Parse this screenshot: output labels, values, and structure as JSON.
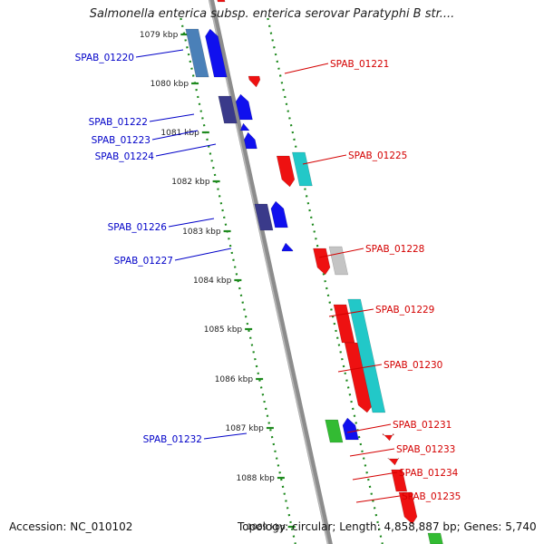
{
  "title": "Salmonella enterica subsp. enterica serovar Paratyphi B str....",
  "footer": {
    "accession": "Accession: NC_010102",
    "topology": "Topology: circular; Length: 4,858,887 bp; Genes: 5,740"
  },
  "colors": {
    "backbone": "#8c8c8c",
    "tick_dots": "#1f8a1f",
    "left_label": "#0000c8",
    "right_label": "#d40000",
    "blue": "#1010ee",
    "dark_blue": "#3a3a8a",
    "steel_blue": "#4a80b8",
    "red": "#ee1111",
    "cyan": "#22c8c8",
    "gray": "#c4c4c4",
    "green": "#33bb33"
  },
  "scale_labels": [
    {
      "id": "kbp-1079",
      "text": "1079 kbp"
    },
    {
      "id": "kbp-1080",
      "text": "1080 kbp"
    },
    {
      "id": "kbp-1081",
      "text": "1081 kbp"
    },
    {
      "id": "kbp-1082",
      "text": "1082 kbp"
    },
    {
      "id": "kbp-1083",
      "text": "1083 kbp"
    },
    {
      "id": "kbp-1084",
      "text": "1084 kbp"
    },
    {
      "id": "kbp-1085",
      "text": "1085 kbp"
    },
    {
      "id": "kbp-1086",
      "text": "1086 kbp"
    },
    {
      "id": "kbp-1087",
      "text": "1087 kbp"
    },
    {
      "id": "kbp-1088",
      "text": "1088 kbp"
    },
    {
      "id": "kbp-1089",
      "text": "1089 kbp"
    }
  ],
  "left_genes": [
    {
      "id": "spab-01220",
      "label": "SPAB_01220"
    },
    {
      "id": "spab-01222",
      "label": "SPAB_01222"
    },
    {
      "id": "spab-01223",
      "label": "SPAB_01223"
    },
    {
      "id": "spab-01224",
      "label": "SPAB_01224"
    },
    {
      "id": "spab-01226",
      "label": "SPAB_01226"
    },
    {
      "id": "spab-01227",
      "label": "SPAB_01227"
    },
    {
      "id": "spab-01232",
      "label": "SPAB_01232"
    }
  ],
  "right_genes": [
    {
      "id": "spab-01221",
      "label": "SPAB_01221"
    },
    {
      "id": "spab-01225",
      "label": "SPAB_01225"
    },
    {
      "id": "spab-01228",
      "label": "SPAB_01228"
    },
    {
      "id": "spab-01229",
      "label": "SPAB_01229"
    },
    {
      "id": "spab-01230",
      "label": "SPAB_01230"
    },
    {
      "id": "spab-01231",
      "label": "SPAB_01231"
    },
    {
      "id": "spab-01233",
      "label": "SPAB_01233"
    },
    {
      "id": "spab-01234",
      "label": "SPAB_01234"
    },
    {
      "id": "spab-01235",
      "label": "SPAB_01235"
    }
  ]
}
